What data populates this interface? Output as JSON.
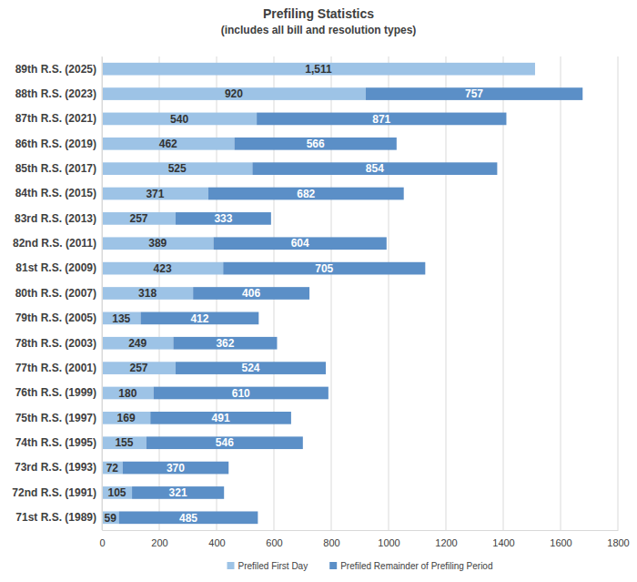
{
  "chart_data": {
    "type": "bar",
    "orientation": "horizontal",
    "stacked": true,
    "data_labels": true,
    "grid": true,
    "legend": "bottom",
    "title": "Prefiling Statistics",
    "subtitle": "(includes all bill and resolution types)",
    "categories": [
      "89th R.S. (2025)",
      "88th R.S. (2023)",
      "87th R.S. (2021)",
      "86th R.S. (2019)",
      "85th R.S. (2017)",
      "84th R.S. (2015)",
      "83rd R.S. (2013)",
      "82nd R.S. (2011)",
      "81st R.S. (2009)",
      "80th R.S. (2007)",
      "79th R.S. (2005)",
      "78th R.S. (2003)",
      "77th R.S. (2001)",
      "76th R.S. (1999)",
      "75th R.S. (1997)",
      "74th R.S. (1995)",
      "73rd R.S. (1993)",
      "72nd R.S. (1991)",
      "71st R.S. (1989)"
    ],
    "series": [
      {
        "name": "Prefiled First Day",
        "color": "#9dc3e6",
        "values": [
          1511,
          920,
          540,
          462,
          525,
          371,
          257,
          389,
          423,
          318,
          135,
          249,
          257,
          180,
          169,
          155,
          72,
          105,
          59
        ],
        "value_labels": [
          "1,511",
          "920",
          "540",
          "462",
          "525",
          "371",
          "257",
          "389",
          "423",
          "318",
          "135",
          "249",
          "257",
          "180",
          "169",
          "155",
          "72",
          "105",
          "59"
        ]
      },
      {
        "name": "Prefiled Remainder of Prefiling Period",
        "color": "#5b8fc7",
        "values": [
          null,
          757,
          871,
          566,
          854,
          682,
          333,
          604,
          705,
          406,
          412,
          362,
          524,
          610,
          491,
          546,
          370,
          321,
          485
        ]
      }
    ],
    "xlim": [
      0,
      1800
    ],
    "xticks": [
      0,
      200,
      400,
      600,
      800,
      1000,
      1200,
      1400,
      1600,
      1800
    ]
  }
}
